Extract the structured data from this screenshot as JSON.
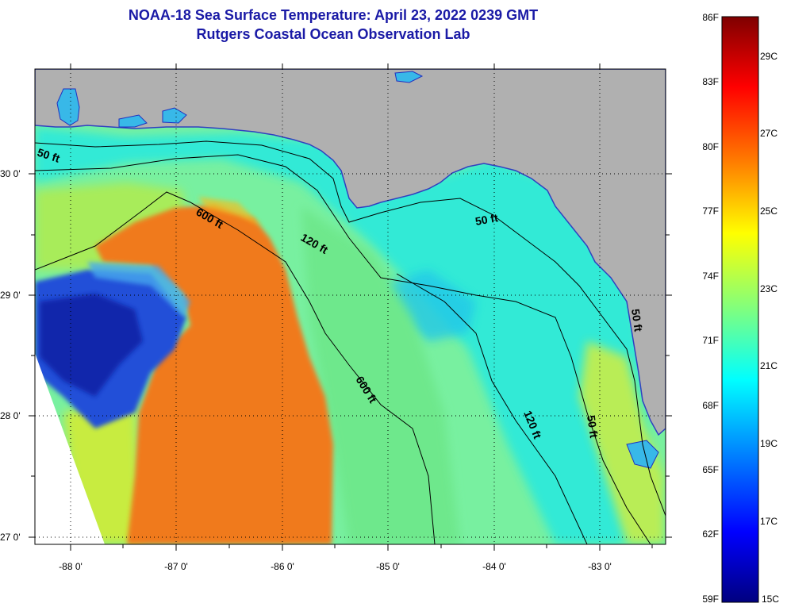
{
  "title": "NOAA-18 Sea Surface Temperature:  April 23, 2022 0239 GMT",
  "subtitle": "Rutgers Coastal Ocean Observation Lab",
  "map": {
    "lon_labels": [
      "-88 0'",
      "-87 0'",
      "-86 0'",
      "-85 0'",
      "-84 0'",
      "-83 0'"
    ],
    "lat_labels": [
      "30 0'",
      "29 0'",
      "28 0'",
      "27 0'"
    ],
    "contour_labels": [
      "50 ft",
      "600 ft",
      "120 ft",
      "50 ft",
      "600 ft",
      "120 ft",
      "50 ft",
      "50 ft"
    ],
    "colors": {
      "land": "#b0b0b0",
      "warm_core": "#f07a1e",
      "shelf": "#2ee8d8",
      "coastal": "#ccee44",
      "cold": "#1430c8"
    }
  },
  "colorbar": {
    "f_labels": [
      "86F",
      "83F",
      "80F",
      "77F",
      "74F",
      "71F",
      "68F",
      "65F",
      "62F",
      "59F"
    ],
    "c_labels": [
      "29C",
      "27C",
      "25C",
      "23C",
      "21C",
      "19C",
      "17C",
      "15C"
    ],
    "stops": [
      "#7f0000",
      "#ff0000",
      "#ff7f00",
      "#ffff00",
      "#7fff7f",
      "#00ffff",
      "#007fff",
      "#0000ff",
      "#00007f"
    ]
  }
}
